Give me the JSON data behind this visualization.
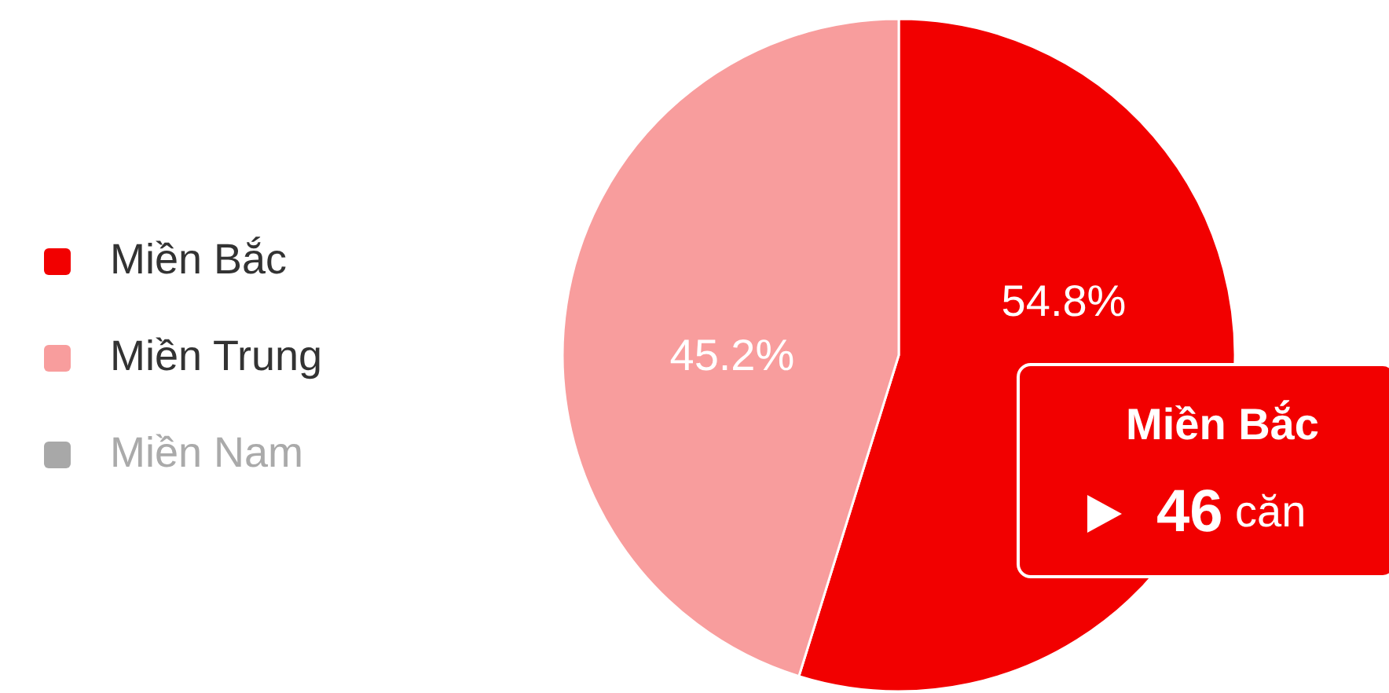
{
  "chart_data": {
    "type": "pie",
    "categories": [
      "Miền Bắc",
      "Miền Trung",
      "Miền Nam"
    ],
    "values": [
      54.8,
      45.2,
      null
    ],
    "colors": [
      "#f20000",
      "#f89d9d",
      "#a8a8a8"
    ],
    "value_labels": [
      "54.8%",
      "45.2%",
      null
    ],
    "legend": "left",
    "annotations": [
      "Miền Bắc",
      "46 căn"
    ]
  }
}
